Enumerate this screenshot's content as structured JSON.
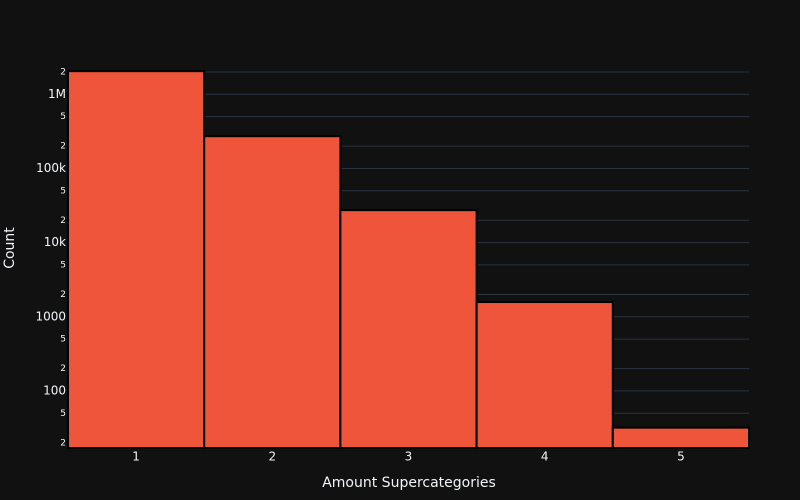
{
  "chart_data": {
    "type": "histogram",
    "x_label": "Amount Supercategories",
    "y_label": "Count",
    "bins": [
      0.5,
      1.5,
      2.5,
      3.5,
      4.5,
      5.5
    ],
    "values": [
      2050000,
      272000,
      27400,
      1580,
      32
    ],
    "color": "#EF553B",
    "edge_color": "#000000",
    "log_y": true,
    "grid": true,
    "xlim": [
      0.5,
      5.5
    ],
    "xticks": [
      1,
      2,
      3,
      4,
      5
    ],
    "ylim": [
      17,
      2900000
    ],
    "yticks": [
      {
        "value": 20,
        "label": "2"
      },
      {
        "value": 50,
        "label": "5"
      },
      100,
      {
        "value": 200,
        "label": "2"
      },
      {
        "value": 500,
        "label": "5"
      },
      1000,
      {
        "value": 2000,
        "label": "2"
      },
      {
        "value": 5000,
        "label": "5"
      },
      {
        "value": 10000,
        "label": "10k"
      },
      {
        "value": 20000,
        "label": "2"
      },
      {
        "value": 50000,
        "label": "5"
      },
      {
        "value": 100000,
        "label": "100k"
      },
      {
        "value": 200000,
        "label": "2"
      },
      {
        "value": 500000,
        "label": "5"
      },
      {
        "value": 1000000,
        "label": "1M"
      },
      {
        "value": 2000000,
        "label": "2"
      }
    ]
  }
}
